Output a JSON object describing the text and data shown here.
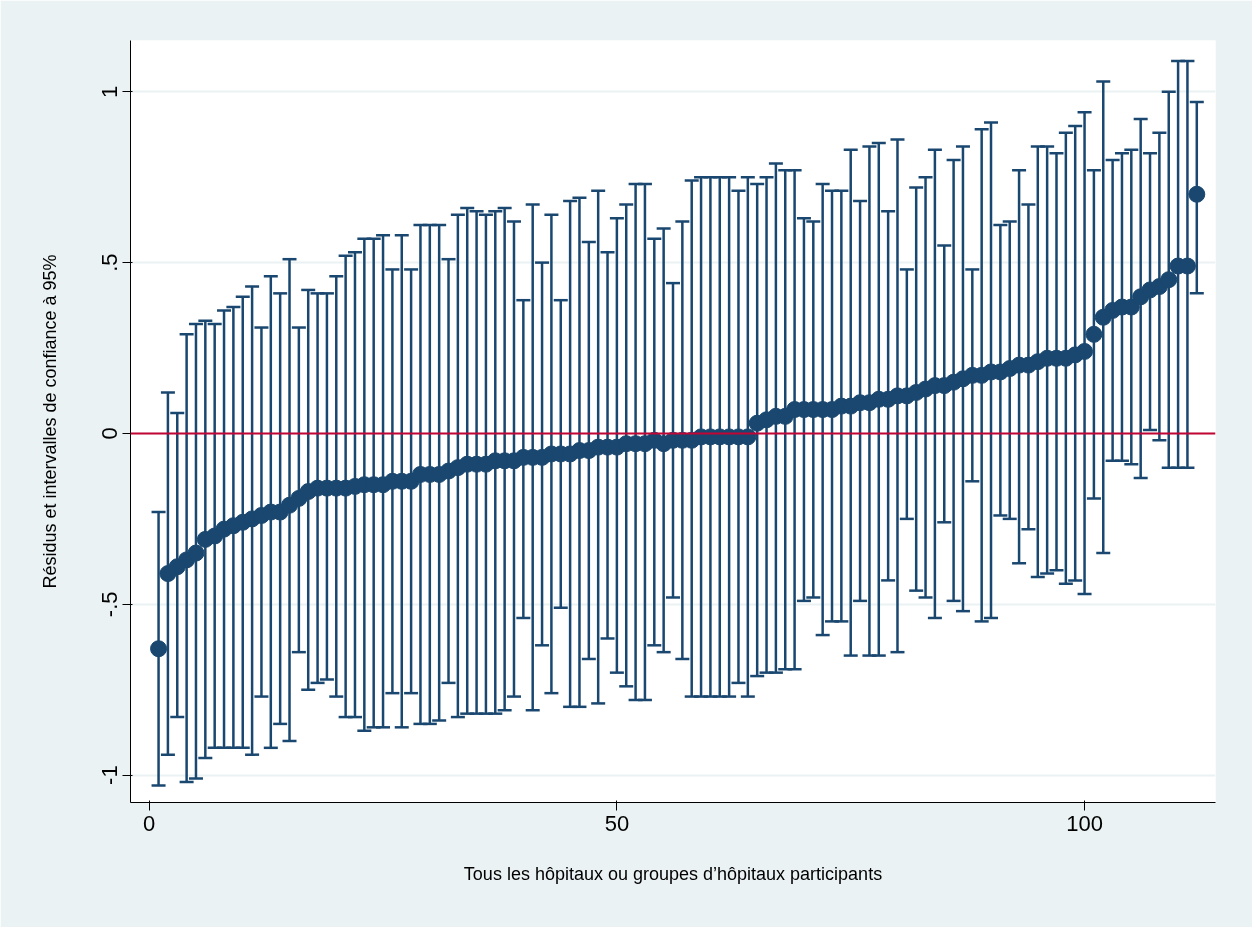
{
  "chart_data": {
    "type": "scatter",
    "xlabel": "Tous les hôpitaux ou groupes d’hôpitaux participants",
    "ylabel": "Résidus et intervalles de confiance à 95%",
    "x": [
      1,
      2,
      3,
      4,
      5,
      6,
      7,
      8,
      9,
      10,
      11,
      12,
      13,
      14,
      15,
      16,
      17,
      18,
      19,
      20,
      21,
      22,
      23,
      24,
      25,
      26,
      27,
      28,
      29,
      30,
      31,
      32,
      33,
      34,
      35,
      36,
      37,
      38,
      39,
      40,
      41,
      42,
      43,
      44,
      45,
      46,
      47,
      48,
      49,
      50,
      51,
      52,
      53,
      54,
      55,
      56,
      57,
      58,
      59,
      60,
      61,
      62,
      63,
      64,
      65,
      66,
      67,
      68,
      69,
      70,
      71,
      72,
      73,
      74,
      75,
      76,
      77,
      78,
      79,
      80,
      81,
      82,
      83,
      84,
      85,
      86,
      87,
      88,
      89,
      90,
      91,
      92,
      93,
      94,
      95,
      96,
      97,
      98,
      99,
      100,
      101,
      102,
      103,
      104,
      105,
      106,
      107,
      108,
      109,
      110,
      111,
      112
    ],
    "series": [
      {
        "color": "#1a476f",
        "values": [
          -0.63,
          -0.41,
          -0.39,
          -0.37,
          -0.35,
          -0.31,
          -0.3,
          -0.28,
          -0.27,
          -0.26,
          -0.25,
          -0.24,
          -0.23,
          -0.23,
          -0.21,
          -0.19,
          -0.17,
          -0.16,
          -0.16,
          -0.16,
          -0.16,
          -0.155,
          -0.15,
          -0.15,
          -0.15,
          -0.14,
          -0.14,
          -0.14,
          -0.12,
          -0.12,
          -0.12,
          -0.11,
          -0.1,
          -0.09,
          -0.09,
          -0.09,
          -0.08,
          -0.08,
          -0.08,
          -0.07,
          -0.07,
          -0.07,
          -0.06,
          -0.06,
          -0.06,
          -0.05,
          -0.05,
          -0.04,
          -0.04,
          -0.04,
          -0.03,
          -0.03,
          -0.03,
          -0.02,
          -0.03,
          -0.02,
          -0.02,
          -0.02,
          -0.01,
          -0.01,
          -0.01,
          -0.01,
          -0.01,
          -0.01,
          0.03,
          0.04,
          0.05,
          0.05,
          0.07,
          0.07,
          0.07,
          0.07,
          0.07,
          0.08,
          0.08,
          0.09,
          0.09,
          0.1,
          0.1,
          0.11,
          0.11,
          0.12,
          0.13,
          0.14,
          0.14,
          0.15,
          0.16,
          0.17,
          0.17,
          0.18,
          0.18,
          0.19,
          0.2,
          0.2,
          0.21,
          0.22,
          0.22,
          0.22,
          0.23,
          0.24,
          0.29,
          0.34,
          0.36,
          0.37,
          0.37,
          0.4,
          0.42,
          0.43,
          0.45,
          0.49,
          0.49,
          0.7
        ],
        "errors": [
          [
            -1.03,
            -0.23
          ],
          [
            -0.94,
            0.12
          ],
          [
            -0.83,
            0.06
          ],
          [
            -1.02,
            0.29
          ],
          [
            -1.01,
            0.32
          ],
          [
            -0.95,
            0.33
          ],
          [
            -0.92,
            0.32
          ],
          [
            -0.92,
            0.36
          ],
          [
            -0.92,
            0.37
          ],
          [
            -0.92,
            0.4
          ],
          [
            -0.94,
            0.43
          ],
          [
            -0.77,
            0.31
          ],
          [
            -0.92,
            0.46
          ],
          [
            -0.85,
            0.41
          ],
          [
            -0.9,
            0.51
          ],
          [
            -0.64,
            0.31
          ],
          [
            -0.75,
            0.42
          ],
          [
            -0.73,
            0.41
          ],
          [
            -0.72,
            0.41
          ],
          [
            -0.77,
            0.46
          ],
          [
            -0.83,
            0.52
          ],
          [
            -0.83,
            0.53
          ],
          [
            -0.87,
            0.57
          ],
          [
            -0.86,
            0.57
          ],
          [
            -0.86,
            0.58
          ],
          [
            -0.76,
            0.48
          ],
          [
            -0.86,
            0.58
          ],
          [
            -0.76,
            0.48
          ],
          [
            -0.85,
            0.61
          ],
          [
            -0.85,
            0.61
          ],
          [
            -0.84,
            0.61
          ],
          [
            -0.73,
            0.51
          ],
          [
            -0.83,
            0.64
          ],
          [
            -0.82,
            0.66
          ],
          [
            -0.82,
            0.65
          ],
          [
            -0.82,
            0.64
          ],
          [
            -0.82,
            0.65
          ],
          [
            -0.81,
            0.66
          ],
          [
            -0.77,
            0.62
          ],
          [
            -0.54,
            0.39
          ],
          [
            -0.81,
            0.67
          ],
          [
            -0.62,
            0.5
          ],
          [
            -0.76,
            0.64
          ],
          [
            -0.51,
            0.39
          ],
          [
            -0.8,
            0.68
          ],
          [
            -0.8,
            0.69
          ],
          [
            -0.66,
            0.56
          ],
          [
            -0.79,
            0.71
          ],
          [
            -0.6,
            0.53
          ],
          [
            -0.7,
            0.63
          ],
          [
            -0.74,
            0.67
          ],
          [
            -0.78,
            0.73
          ],
          [
            -0.78,
            0.73
          ],
          [
            -0.62,
            0.57
          ],
          [
            -0.64,
            0.6
          ],
          [
            -0.48,
            0.44
          ],
          [
            -0.66,
            0.62
          ],
          [
            -0.77,
            0.74
          ],
          [
            -0.77,
            0.75
          ],
          [
            -0.77,
            0.75
          ],
          [
            -0.77,
            0.75
          ],
          [
            -0.77,
            0.75
          ],
          [
            -0.73,
            0.71
          ],
          [
            -0.77,
            0.75
          ],
          [
            -0.71,
            0.73
          ],
          [
            -0.7,
            0.75
          ],
          [
            -0.7,
            0.79
          ],
          [
            -0.69,
            0.77
          ],
          [
            -0.69,
            0.77
          ],
          [
            -0.49,
            0.63
          ],
          [
            -0.48,
            0.62
          ],
          [
            -0.59,
            0.73
          ],
          [
            -0.55,
            0.71
          ],
          [
            -0.55,
            0.71
          ],
          [
            -0.65,
            0.83
          ],
          [
            -0.49,
            0.68
          ],
          [
            -0.65,
            0.84
          ],
          [
            -0.65,
            0.85
          ],
          [
            -0.43,
            0.65
          ],
          [
            -0.64,
            0.86
          ],
          [
            -0.25,
            0.48
          ],
          [
            -0.46,
            0.72
          ],
          [
            -0.48,
            0.75
          ],
          [
            -0.54,
            0.83
          ],
          [
            -0.26,
            0.55
          ],
          [
            -0.49,
            0.8
          ],
          [
            -0.52,
            0.84
          ],
          [
            -0.14,
            0.48
          ],
          [
            -0.55,
            0.89
          ],
          [
            -0.54,
            0.91
          ],
          [
            -0.24,
            0.61
          ],
          [
            -0.25,
            0.62
          ],
          [
            -0.38,
            0.77
          ],
          [
            -0.28,
            0.67
          ],
          [
            -0.42,
            0.84
          ],
          [
            -0.41,
            0.84
          ],
          [
            -0.4,
            0.82
          ],
          [
            -0.44,
            0.88
          ],
          [
            -0.43,
            0.9
          ],
          [
            -0.47,
            0.94
          ],
          [
            -0.19,
            0.77
          ],
          [
            -0.35,
            1.03
          ],
          [
            -0.08,
            0.8
          ],
          [
            -0.08,
            0.82
          ],
          [
            -0.09,
            0.83
          ],
          [
            -0.13,
            0.92
          ],
          [
            0.01,
            0.82
          ],
          [
            -0.02,
            0.88
          ],
          [
            -0.1,
            1.0
          ],
          [
            -0.1,
            1.09
          ],
          [
            -0.1,
            1.09
          ],
          [
            0.41,
            0.97
          ]
        ]
      }
    ],
    "marker": "circle",
    "xlim": [
      -2,
      114
    ],
    "ylim": [
      -1.08,
      1.15
    ],
    "xticks": [
      0,
      50,
      100
    ],
    "yticks": [
      -1,
      {
        "value": -0.5,
        "label": "-.5"
      },
      0,
      {
        "value": 0.5,
        "label": ".5"
      },
      1
    ],
    "grid": "y",
    "ref_lines": [
      {
        "axis": "y",
        "value": 0,
        "color": "#c10534"
      }
    ]
  }
}
